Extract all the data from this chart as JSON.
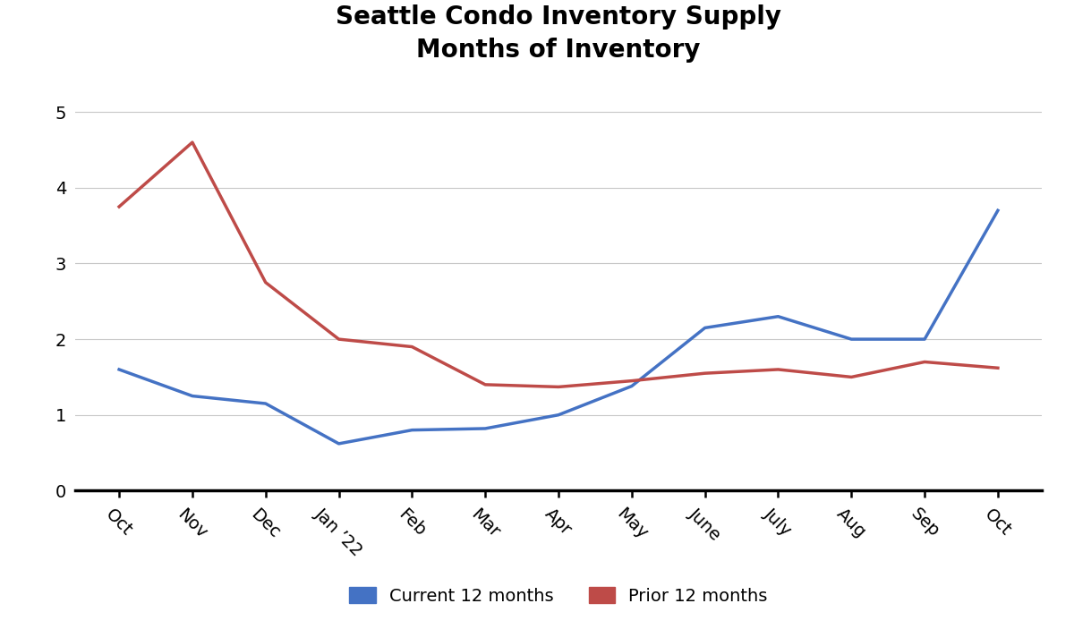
{
  "title_line1": "Seattle Condo Inventory Supply",
  "title_line2": "Months of Inventory",
  "title_fontsize": 20,
  "title_fontweight": "bold",
  "x_labels": [
    "Oct",
    "Nov",
    "Dec",
    "Jan ’22",
    "Feb",
    "Mar",
    "Apr",
    "May",
    "June",
    "July",
    "Aug",
    "Sep",
    "Oct"
  ],
  "current_12": [
    1.6,
    1.25,
    1.15,
    0.62,
    0.8,
    0.82,
    1.0,
    1.38,
    2.15,
    2.3,
    2.0,
    2.0,
    3.7
  ],
  "prior_12": [
    3.75,
    4.6,
    2.75,
    2.0,
    1.9,
    1.4,
    1.37,
    1.45,
    1.55,
    1.6,
    1.5,
    1.7,
    1.62
  ],
  "current_color": "#4472C4",
  "prior_color": "#BE4B48",
  "line_width": 2.5,
  "ylim": [
    0,
    5.4
  ],
  "yticks": [
    0,
    1,
    2,
    3,
    4,
    5
  ],
  "legend_labels": [
    "Current 12 months",
    "Prior 12 months"
  ],
  "legend_fontsize": 14,
  "bg_color": "#FFFFFF",
  "grid_color": "#C8C8C8",
  "tick_label_fontsize": 14,
  "xlabel_rotation": -45
}
